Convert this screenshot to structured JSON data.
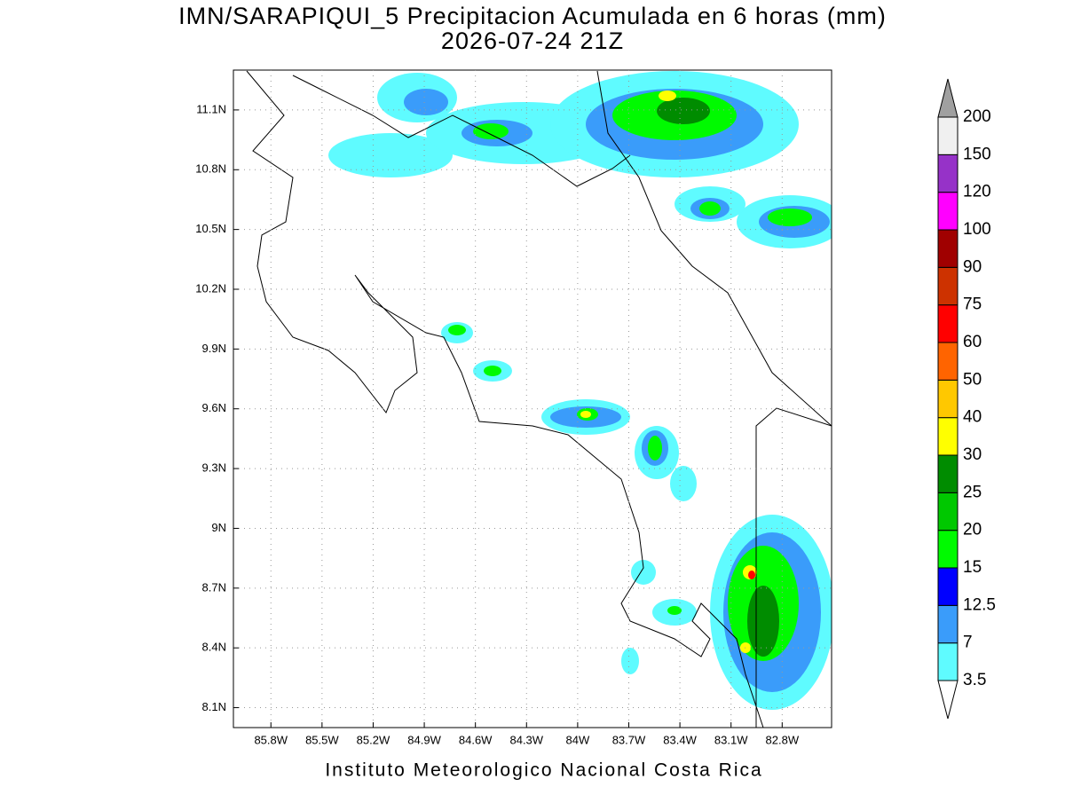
{
  "map": {
    "title": "IMN/SARAPIQUI_5 Precipitacion Acumulada en 6 horas (mm)",
    "subtitle": "2026-07-24 21Z",
    "footer": "Instituto Meteorologico Nacional Costa Rica",
    "lonlim": [
      -86.02,
      -82.51
    ],
    "latlim": [
      8.0,
      11.3
    ],
    "lonticks": [
      {
        "value": -85.8,
        "label": "85.8W"
      },
      {
        "value": -85.5,
        "label": "85.5W"
      },
      {
        "value": -85.2,
        "label": "85.2W"
      },
      {
        "value": -84.9,
        "label": "84.9W"
      },
      {
        "value": -84.6,
        "label": "84.6W"
      },
      {
        "value": -84.3,
        "label": "84.3W"
      },
      {
        "value": -84.0,
        "label": "84W"
      },
      {
        "value": -83.7,
        "label": "83.7W"
      },
      {
        "value": -83.4,
        "label": "83.4W"
      },
      {
        "value": -83.1,
        "label": "83.1W"
      },
      {
        "value": -82.8,
        "label": "82.8W"
      }
    ],
    "latticks": [
      {
        "value": 8.1,
        "label": "8.1N"
      },
      {
        "value": 8.4,
        "label": "8.4N"
      },
      {
        "value": 8.7,
        "label": "8.7N"
      },
      {
        "value": 9.0,
        "label": "9N"
      },
      {
        "value": 9.3,
        "label": "9.3N"
      },
      {
        "value": 9.6,
        "label": "9.6N"
      },
      {
        "value": 9.9,
        "label": "9.9N"
      },
      {
        "value": 10.2,
        "label": "10.2N"
      },
      {
        "value": 10.5,
        "label": "10.5N"
      },
      {
        "value": 10.8,
        "label": "10.8N"
      },
      {
        "value": 11.1,
        "label": "11.1N"
      }
    ],
    "grid": true,
    "colorbar": {
      "levels": [
        3.5,
        7,
        12.5,
        15,
        20,
        25,
        30,
        40,
        50,
        60,
        75,
        90,
        100,
        120,
        150,
        200
      ],
      "colors": [
        "#ffffff",
        "#5ffbff",
        "#3a9cfa",
        "#0000ff",
        "#00fa00",
        "#00c800",
        "#008c00",
        "#ffff00",
        "#ffc800",
        "#ff6400",
        "#ff0000",
        "#cd3200",
        "#a00000",
        "#ff00ff",
        "#9632c8",
        "#f0f0f0",
        "#a0a0a0"
      ]
    }
  }
}
